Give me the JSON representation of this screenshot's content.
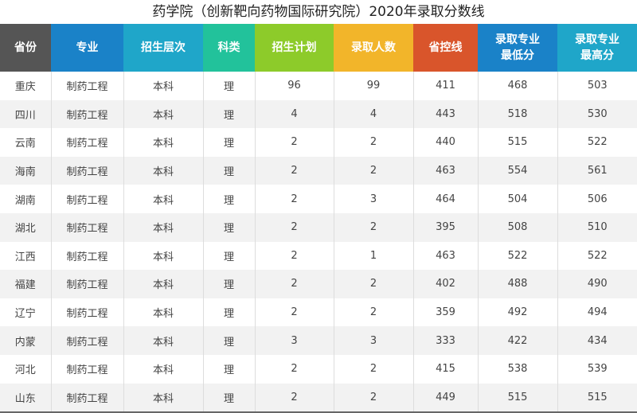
{
  "title": "药学院（创新靶向药物国际研究院）2020年录取分数线",
  "headers": [
    {
      "label": "省份",
      "color": "#555555"
    },
    {
      "label": "专业",
      "color": "#1a82c8"
    },
    {
      "label": "招生层次",
      "color": "#1fa6c9"
    },
    {
      "label": "科类",
      "color": "#22c29b"
    },
    {
      "label": "招生计划",
      "color": "#8dcb2a"
    },
    {
      "label": "录取人数",
      "color": "#f2b52a"
    },
    {
      "label": "省控线",
      "color": "#d9552b"
    },
    {
      "label": "录取专业\n最低分",
      "color": "#1a82c8"
    },
    {
      "label": "录取专业\n最高分",
      "color": "#1fa6c9"
    }
  ],
  "rows": [
    [
      "重庆",
      "制药工程",
      "本科",
      "理",
      "96",
      "99",
      "411",
      "468",
      "503"
    ],
    [
      "四川",
      "制药工程",
      "本科",
      "理",
      "4",
      "4",
      "443",
      "518",
      "530"
    ],
    [
      "云南",
      "制药工程",
      "本科",
      "理",
      "2",
      "2",
      "440",
      "515",
      "522"
    ],
    [
      "海南",
      "制药工程",
      "本科",
      "理",
      "2",
      "2",
      "463",
      "554",
      "561"
    ],
    [
      "湖南",
      "制药工程",
      "本科",
      "理",
      "2",
      "3",
      "464",
      "504",
      "506"
    ],
    [
      "湖北",
      "制药工程",
      "本科",
      "理",
      "2",
      "2",
      "395",
      "508",
      "510"
    ],
    [
      "江西",
      "制药工程",
      "本科",
      "理",
      "2",
      "1",
      "463",
      "522",
      "522"
    ],
    [
      "福建",
      "制药工程",
      "本科",
      "理",
      "2",
      "2",
      "402",
      "488",
      "490"
    ],
    [
      "辽宁",
      "制药工程",
      "本科",
      "理",
      "2",
      "2",
      "359",
      "492",
      "494"
    ],
    [
      "内蒙",
      "制药工程",
      "本科",
      "理",
      "3",
      "3",
      "333",
      "422",
      "434"
    ],
    [
      "河北",
      "制药工程",
      "本科",
      "理",
      "2",
      "2",
      "415",
      "538",
      "539"
    ],
    [
      "山东",
      "制药工程",
      "本科",
      "理",
      "2",
      "2",
      "449",
      "515",
      "515"
    ]
  ]
}
